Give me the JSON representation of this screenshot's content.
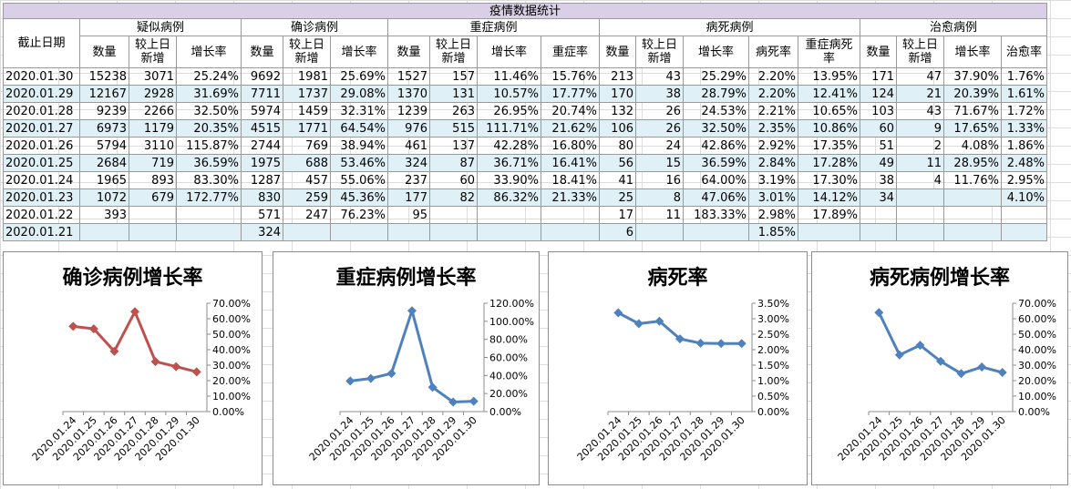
{
  "sheet_title": "疫情数据统计",
  "date_header": "截止日期",
  "groups": [
    {
      "name": "疑似病例",
      "cols": [
        "数量",
        "较上日新增",
        "增长率"
      ]
    },
    {
      "name": "确诊病例",
      "cols": [
        "数量",
        "较上日新增",
        "增长率"
      ]
    },
    {
      "name": "重症病例",
      "cols": [
        "数量",
        "较上日新增",
        "增长率",
        "重症率"
      ]
    },
    {
      "name": "病死病例",
      "cols": [
        "数量",
        "较上日新增",
        "增长率",
        "病死率",
        "重症病死率"
      ]
    },
    {
      "name": "治愈病例",
      "cols": [
        "数量",
        "较上日新增",
        "增长率",
        "治愈率"
      ]
    }
  ],
  "rows": [
    {
      "date": "2020.01.30",
      "cells": [
        "15238",
        "3071",
        "25.24%",
        "9692",
        "1981",
        "25.69%",
        "1527",
        "157",
        "11.46%",
        "15.76%",
        "213",
        "43",
        "25.29%",
        "2.20%",
        "13.95%",
        "171",
        "47",
        "37.90%",
        "1.76%"
      ]
    },
    {
      "date": "2020.01.29",
      "cells": [
        "12167",
        "2928",
        "31.69%",
        "7711",
        "1737",
        "29.08%",
        "1370",
        "131",
        "10.57%",
        "17.77%",
        "170",
        "38",
        "28.79%",
        "2.20%",
        "12.41%",
        "124",
        "21",
        "20.39%",
        "1.61%"
      ]
    },
    {
      "date": "2020.01.28",
      "cells": [
        "9239",
        "2266",
        "32.50%",
        "5974",
        "1459",
        "32.31%",
        "1239",
        "263",
        "26.95%",
        "20.74%",
        "132",
        "26",
        "24.53%",
        "2.21%",
        "10.65%",
        "103",
        "43",
        "71.67%",
        "1.72%"
      ]
    },
    {
      "date": "2020.01.27",
      "cells": [
        "6973",
        "1179",
        "20.35%",
        "4515",
        "1771",
        "64.54%",
        "976",
        "515",
        "111.71%",
        "21.62%",
        "106",
        "26",
        "32.50%",
        "2.35%",
        "10.86%",
        "60",
        "9",
        "17.65%",
        "1.33%"
      ]
    },
    {
      "date": "2020.01.26",
      "cells": [
        "5794",
        "3110",
        "115.87%",
        "2744",
        "769",
        "38.94%",
        "461",
        "137",
        "42.28%",
        "16.80%",
        "80",
        "24",
        "42.86%",
        "2.92%",
        "17.35%",
        "51",
        "2",
        "4.08%",
        "1.86%"
      ]
    },
    {
      "date": "2020.01.25",
      "cells": [
        "2684",
        "719",
        "36.59%",
        "1975",
        "688",
        "53.46%",
        "324",
        "87",
        "36.71%",
        "16.41%",
        "56",
        "15",
        "36.59%",
        "2.84%",
        "17.28%",
        "49",
        "11",
        "28.95%",
        "2.48%"
      ]
    },
    {
      "date": "2020.01.24",
      "cells": [
        "1965",
        "893",
        "83.30%",
        "1287",
        "457",
        "55.06%",
        "237",
        "60",
        "33.90%",
        "18.41%",
        "41",
        "16",
        "64.00%",
        "3.19%",
        "17.30%",
        "38",
        "4",
        "11.76%",
        "2.95%"
      ]
    },
    {
      "date": "2020.01.23",
      "cells": [
        "1072",
        "679",
        "172.77%",
        "830",
        "259",
        "45.36%",
        "177",
        "82",
        "86.32%",
        "21.33%",
        "25",
        "8",
        "47.06%",
        "3.01%",
        "14.12%",
        "34",
        "",
        "",
        "4.10%"
      ]
    },
    {
      "date": "2020.01.22",
      "cells": [
        "393",
        "",
        "",
        "571",
        "247",
        "76.23%",
        "95",
        "",
        "",
        "",
        "17",
        "11",
        "183.33%",
        "2.98%",
        "17.89%",
        "",
        "",
        "",
        ""
      ]
    },
    {
      "date": "2020.01.21",
      "cells": [
        "",
        "",
        "",
        "324",
        "",
        "",
        "",
        "",
        "",
        "",
        "6",
        "",
        "",
        "1.85%",
        "",
        "",
        "",
        "",
        ""
      ]
    }
  ],
  "chart_data": [
    {
      "type": "line",
      "title": "确诊病例增长率",
      "color": "#c0504d",
      "categories": [
        "2020.01.24",
        "2020.01.25",
        "2020.01.26",
        "2020.01.27",
        "2020.01.28",
        "2020.01.29",
        "2020.01.30"
      ],
      "values": [
        55.06,
        53.46,
        38.94,
        64.54,
        32.31,
        29.08,
        25.69
      ],
      "ylim": [
        0,
        70
      ],
      "ystep": 10,
      "ytick_labels": [
        "0.00%",
        "10.00%",
        "20.00%",
        "30.00%",
        "40.00%",
        "50.00%",
        "60.00%",
        "70.00%"
      ]
    },
    {
      "type": "line",
      "title": "重症病例增长率",
      "color": "#4f81bd",
      "categories": [
        "2020.01.24",
        "2020.01.25",
        "2020.01.26",
        "2020.01.27",
        "2020.01.28",
        "2020.01.29",
        "2020.01.30"
      ],
      "values": [
        33.9,
        36.71,
        42.28,
        111.71,
        26.95,
        10.57,
        11.46
      ],
      "ylim": [
        0,
        120
      ],
      "ystep": 20,
      "ytick_labels": [
        "0.00%",
        "20.00%",
        "40.00%",
        "60.00%",
        "80.00%",
        "100.00%",
        "120.00%"
      ]
    },
    {
      "type": "line",
      "title": "病死率",
      "color": "#4f81bd",
      "categories": [
        "2020.01.24",
        "2020.01.25",
        "2020.01.26",
        "2020.01.27",
        "2020.01.28",
        "2020.01.29",
        "2020.01.30"
      ],
      "values": [
        3.19,
        2.84,
        2.92,
        2.35,
        2.21,
        2.2,
        2.2
      ],
      "ylim": [
        0,
        3.5
      ],
      "ystep": 0.5,
      "ytick_labels": [
        "0.00%",
        "0.50%",
        "1.00%",
        "1.50%",
        "2.00%",
        "2.50%",
        "3.00%",
        "3.50%"
      ]
    },
    {
      "type": "line",
      "title": "病死病例增长率",
      "color": "#4f81bd",
      "categories": [
        "2020.01.24",
        "2020.01.25",
        "2020.01.26",
        "2020.01.27",
        "2020.01.28",
        "2020.01.29",
        "2020.01.30"
      ],
      "values": [
        64.0,
        36.59,
        42.86,
        32.5,
        24.53,
        28.79,
        25.29
      ],
      "ylim": [
        0,
        70
      ],
      "ystep": 10,
      "ytick_labels": [
        "0.00%",
        "10.00%",
        "20.00%",
        "30.00%",
        "40.00%",
        "50.00%",
        "60.00%",
        "70.00%"
      ]
    }
  ]
}
